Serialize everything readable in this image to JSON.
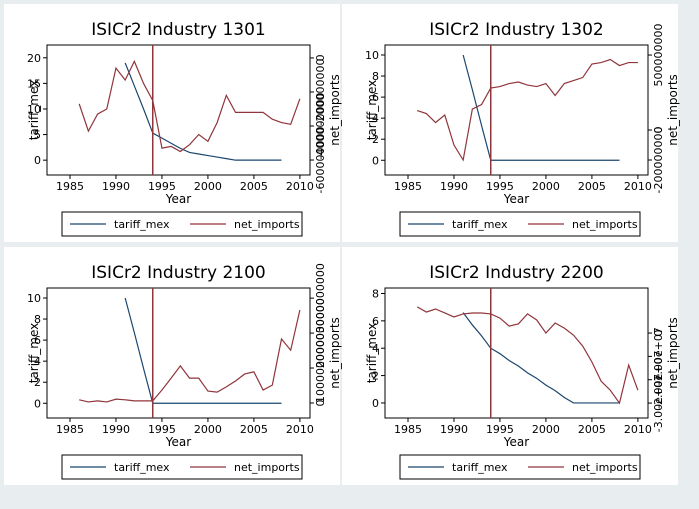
{
  "chart_data": [
    {
      "type": "line",
      "title": "ISICr2 Industry 1301",
      "xlabel": "Year",
      "ylabel": "tariff_mex",
      "y2label": "net_imports",
      "x": [
        1986,
        1987,
        1988,
        1989,
        1990,
        1991,
        1992,
        1993,
        1994,
        1995,
        1996,
        1997,
        1998,
        1999,
        2000,
        2001,
        2002,
        2003,
        2004,
        2005,
        2006,
        2007,
        2008,
        2009,
        2010
      ],
      "xlim": [
        1982.5,
        2011.1
      ],
      "xticks": [
        1985,
        1990,
        1995,
        2000,
        2005,
        2010
      ],
      "ylim": [
        -2.9,
        22.5
      ],
      "yticks": [
        0,
        5,
        10,
        15,
        20
      ],
      "y2lim": [
        -688000000,
        76000000
      ],
      "y2ticks": [
        -600000000,
        -400000000,
        -200000000,
        0
      ],
      "xline": 1994,
      "xline_color": "#90353b",
      "legend": "bottom",
      "series": [
        {
          "name": "tariff_mex",
          "color": "#1a476f",
          "values": [
            null,
            null,
            null,
            null,
            null,
            19,
            14.5,
            10,
            5.3,
            4.3,
            3.3,
            2.3,
            1.5,
            1.2,
            0.9,
            0.6,
            0.3,
            0,
            0,
            0,
            0,
            0,
            0,
            null,
            null
          ]
        },
        {
          "name": "net_imports",
          "color": "#90353b",
          "axis": "y2",
          "values": [
            -270000000,
            -430000000,
            -330000000,
            -300000000,
            -60000000,
            -130000000,
            -20000000,
            -150000000,
            -250000000,
            -530000000,
            -520000000,
            -550000000,
            -510000000,
            -450000000,
            -490000000,
            -380000000,
            -220000000,
            -320000000,
            -320000000,
            -320000000,
            -320000000,
            -360000000,
            -380000000,
            -390000000,
            -240000000
          ]
        }
      ]
    },
    {
      "type": "line",
      "title": "ISICr2 Industry 1302",
      "xlabel": "Year",
      "ylabel": "tariff_mex",
      "y2label": "net_imports",
      "x": [
        1986,
        1987,
        1988,
        1989,
        1990,
        1991,
        1992,
        1993,
        1994,
        1995,
        1996,
        1997,
        1998,
        1999,
        2000,
        2001,
        2002,
        2003,
        2004,
        2005,
        2006,
        2007,
        2008,
        2009,
        2010
      ],
      "xlim": [
        1982.5,
        2011.1
      ],
      "xticks": [
        1985,
        1990,
        1995,
        2000,
        2005,
        2010
      ],
      "ylim": [
        -1.4,
        10.95
      ],
      "yticks": [
        0,
        2,
        4,
        6,
        8,
        10
      ],
      "y2lim": [
        -300000000,
        567000000
      ],
      "y2ticks": [
        -200000000,
        0,
        500000000
      ],
      "xline": 1994,
      "xline_color": "#90353b",
      "legend": "bottom",
      "series": [
        {
          "name": "tariff_mex",
          "color": "#1a476f",
          "values": [
            null,
            null,
            null,
            null,
            null,
            10,
            6.7,
            3.3,
            0,
            0,
            0,
            0,
            0,
            0,
            0,
            0,
            0,
            0,
            0,
            0,
            0,
            0,
            0,
            null,
            null
          ]
        },
        {
          "name": "net_imports",
          "color": "#90353b",
          "axis": "y2",
          "values": [
            130000000,
            110000000,
            50000000,
            100000000,
            -100000000,
            -200000000,
            140000000,
            170000000,
            280000000,
            290000000,
            310000000,
            320000000,
            300000000,
            290000000,
            310000000,
            230000000,
            310000000,
            330000000,
            350000000,
            440000000,
            450000000,
            470000000,
            430000000,
            450000000,
            450000000
          ]
        }
      ]
    },
    {
      "type": "line",
      "title": "ISICr2 Industry 2100",
      "xlabel": "Year",
      "ylabel": "tariff_mex",
      "y2label": "net_imports",
      "x": [
        1986,
        1987,
        1988,
        1989,
        1990,
        1991,
        1992,
        1993,
        1994,
        1995,
        1996,
        1997,
        1998,
        1999,
        2000,
        2001,
        2002,
        2003,
        2004,
        2005,
        2006,
        2007,
        2008,
        2009,
        2010
      ],
      "xlim": [
        1982.5,
        2011.1
      ],
      "xticks": [
        1985,
        1990,
        1995,
        2000,
        2005,
        2010
      ],
      "ylim": [
        -1.4,
        10.95
      ],
      "yticks": [
        0,
        2,
        4,
        6,
        8,
        10
      ],
      "y2lim": [
        -430000000,
        3290000000
      ],
      "y2ticks": [
        0,
        1000000000,
        2000000000,
        3000000000
      ],
      "xline": 1994,
      "xline_color": "#90353b",
      "legend": "bottom",
      "series": [
        {
          "name": "tariff_mex",
          "color": "#1a476f",
          "values": [
            null,
            null,
            null,
            null,
            null,
            10,
            6.7,
            3.3,
            0,
            0,
            0,
            0,
            0,
            0,
            0,
            0,
            0,
            0,
            0,
            0,
            0,
            0,
            0,
            null,
            null
          ]
        },
        {
          "name": "net_imports",
          "color": "#90353b",
          "axis": "y2",
          "values": [
            90000000,
            30000000,
            60000000,
            30000000,
            110000000,
            90000000,
            60000000,
            60000000,
            60000000,
            370000000,
            710000000,
            1060000000,
            710000000,
            710000000,
            340000000,
            310000000,
            460000000,
            630000000,
            830000000,
            890000000,
            370000000,
            510000000,
            1830000000,
            1510000000,
            2660000000
          ]
        }
      ]
    },
    {
      "type": "line",
      "title": "ISICr2 Industry 2200",
      "xlabel": "Year",
      "ylabel": "tariff_mex",
      "y2label": "net_imports",
      "x": [
        1986,
        1987,
        1988,
        1989,
        1990,
        1991,
        1992,
        1993,
        1994,
        1995,
        1996,
        1997,
        1998,
        1999,
        2000,
        2001,
        2002,
        2003,
        2004,
        2005,
        2006,
        2007,
        2008,
        2009,
        2010
      ],
      "xlim": [
        1982.5,
        2011.1
      ],
      "xticks": [
        1985,
        1990,
        1995,
        2000,
        2005,
        2010
      ],
      "ylim": [
        -1.1,
        8.4
      ],
      "yticks": [
        0,
        2,
        4,
        6,
        8
      ],
      "y2lim": [
        -36400000,
        19300000
      ],
      "y2ticks": [
        {
          "value": -30000000,
          "label": "-3.00e+07"
        },
        {
          "value": -20000000,
          "label": "-2.00e+07"
        },
        {
          "value": -10000000,
          "label": "-1.00e+07"
        },
        0
      ],
      "xline": 1994,
      "xline_color": "#90353b",
      "legend": "bottom",
      "series": [
        {
          "name": "tariff_mex",
          "color": "#1a476f",
          "values": [
            null,
            null,
            null,
            null,
            null,
            6.6,
            5.7,
            4.9,
            4,
            3.6,
            3.1,
            2.7,
            2.2,
            1.8,
            1.3,
            0.9,
            0.4,
            0,
            0,
            0,
            0,
            0,
            0,
            null,
            null
          ]
        },
        {
          "name": "net_imports",
          "color": "#90353b",
          "axis": "y2",
          "values": [
            11200000,
            9000000,
            10300000,
            8600000,
            6900000,
            8200000,
            8600000,
            8600000,
            8200000,
            6400000,
            3000000,
            3900000,
            8200000,
            5600000,
            0,
            4300000,
            2100000,
            -900000,
            -5600000,
            -12400000,
            -20600000,
            -24500000,
            -30000000,
            -13700000,
            -24500000
          ]
        }
      ]
    }
  ]
}
